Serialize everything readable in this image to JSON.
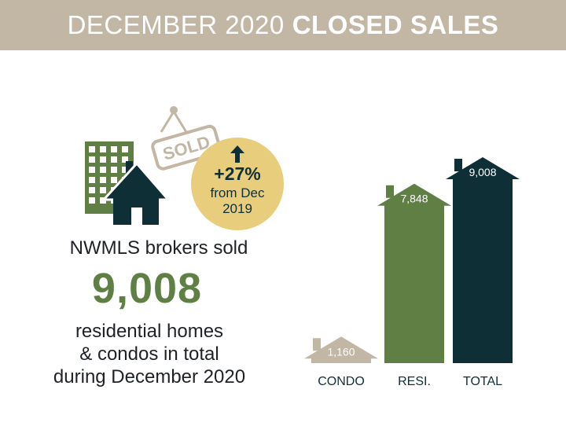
{
  "header": {
    "title_light": "DECEMBER 2020",
    "title_bold": "CLOSED SALES"
  },
  "illustration": {
    "sign_text": "SOLD",
    "icons": [
      "apartment-building-icon",
      "house-icon",
      "sold-sign-icon",
      "up-arrow-icon"
    ]
  },
  "badge": {
    "change": "+27%",
    "from_line1": "from Dec",
    "from_line2": "2019"
  },
  "summary": {
    "lead": "NWMLS brokers sold",
    "total": "9,008",
    "desc_line1": "residential homes",
    "desc_line2": "& condos in total",
    "desc_line3": "during December 2020"
  },
  "colors": {
    "banner": "#c2b6a4",
    "condo": "#c2b6a4",
    "resi": "#5f7f45",
    "total": "#0f2f37",
    "badge": "#e8cd7d"
  },
  "chart_data": {
    "type": "bar",
    "title": "",
    "xlabel": "",
    "ylabel": "",
    "categories": [
      "CONDO",
      "RESI.",
      "TOTAL"
    ],
    "values": [
      1160,
      7848,
      9008
    ],
    "value_labels": [
      "1,160",
      "7,848",
      "9,008"
    ],
    "ylim": [
      0,
      9008
    ],
    "grid": false,
    "legend": "none"
  }
}
